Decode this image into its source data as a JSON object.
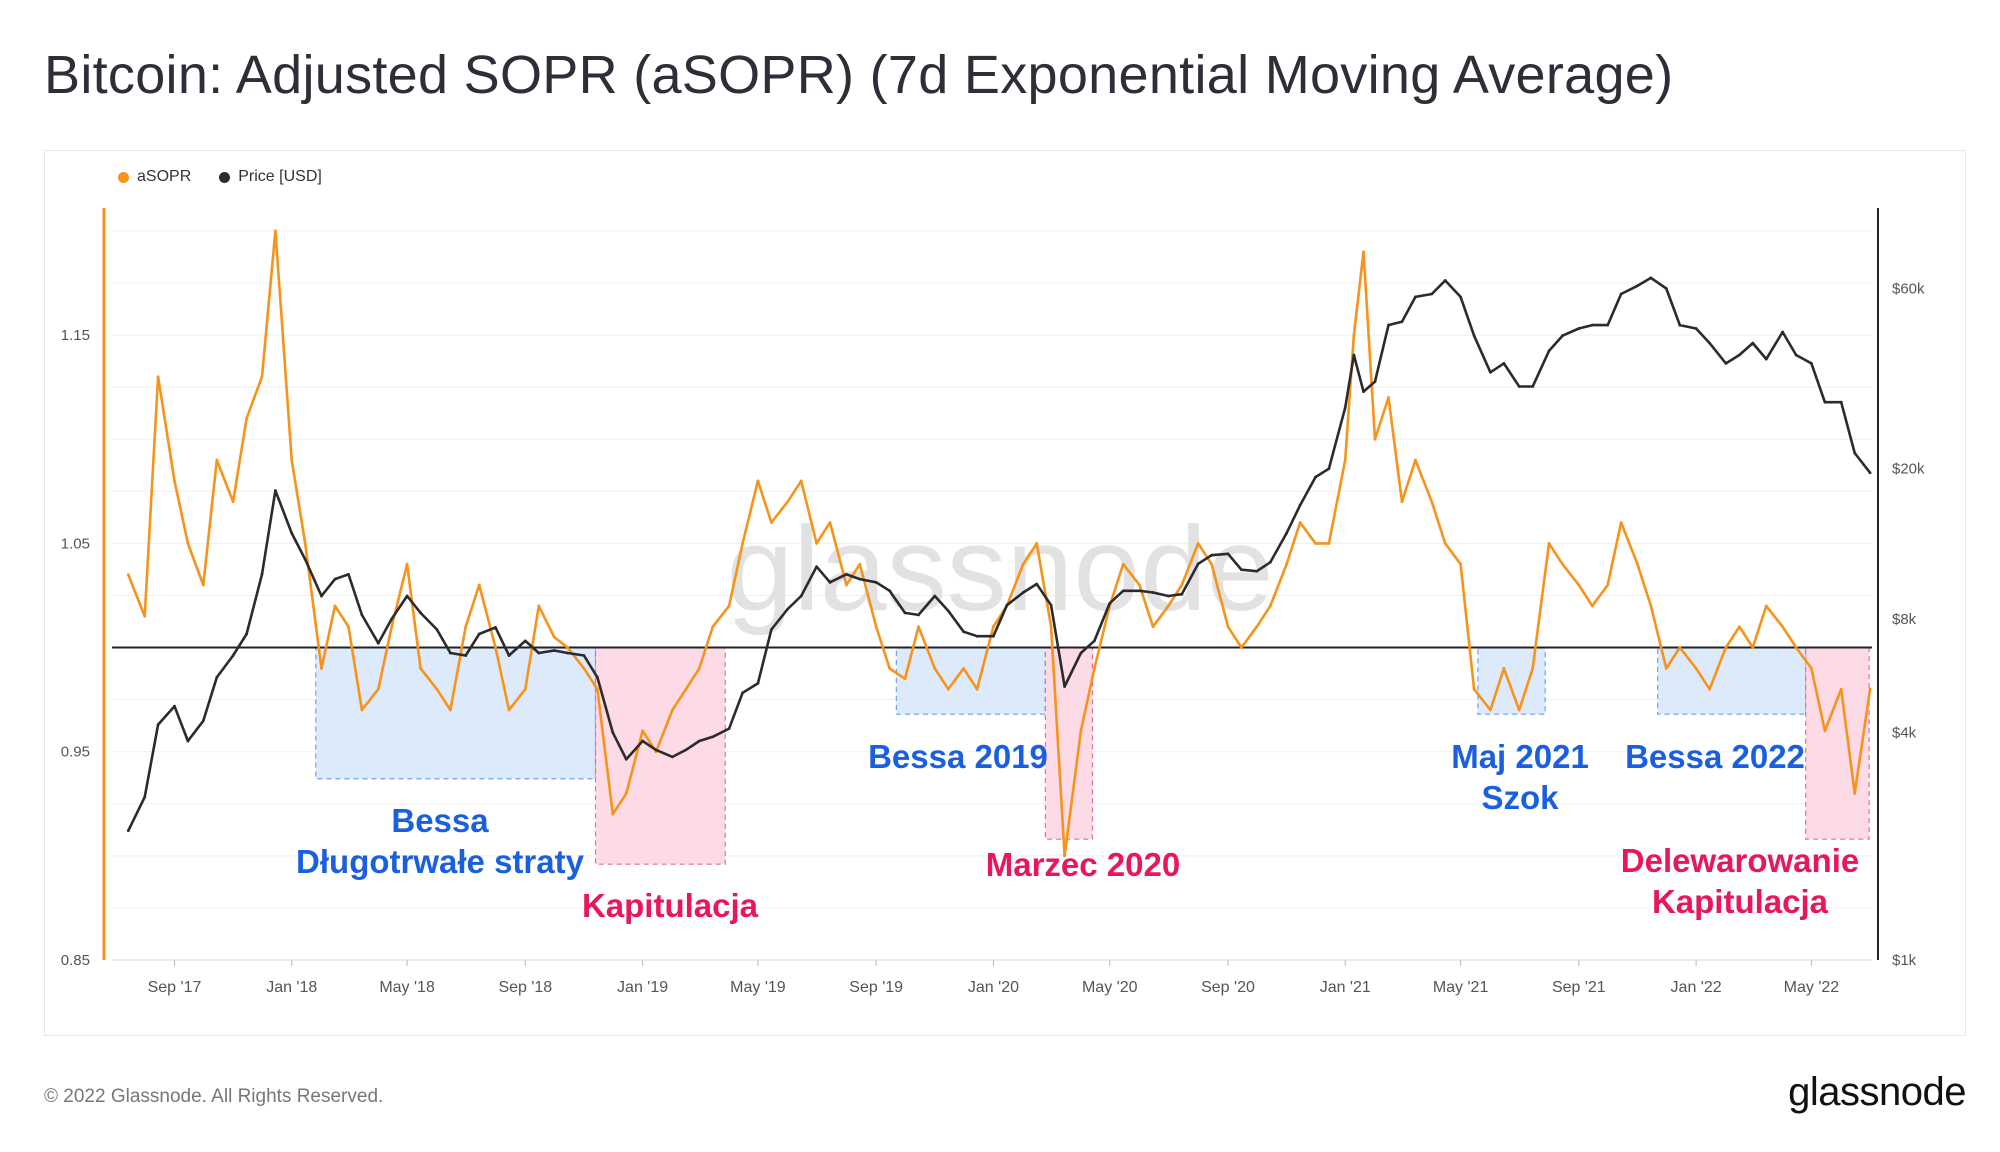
{
  "header": {
    "title": "Bitcoin: Adjusted SOPR (aSOPR) (7d Exponential Moving Average)"
  },
  "legend": {
    "asopr_label": "aSOPR",
    "price_label": "Price [USD]"
  },
  "footer": {
    "copyright": "© 2022 Glassnode. All Rights Reserved.",
    "brand": "glassnode"
  },
  "watermark": "glassnode",
  "colors": {
    "asopr": "#f7931a",
    "price": "#2b2b2b",
    "bear_fill": "#d7e6fb",
    "bear_stroke": "#6fa1e3",
    "capit_fill": "#fbd5e3",
    "capit_stroke": "#e36d9b",
    "bear_text": "#1a5fe0",
    "capit_text": "#e8175d"
  },
  "chart_data": {
    "type": "line",
    "title": "Bitcoin: Adjusted SOPR (aSOPR) (7d Exponential Moving Average)",
    "x_ticks": [
      "Sep '17",
      "Jan '18",
      "May '18",
      "Sep '18",
      "Jan '19",
      "May '19",
      "Sep '19",
      "Jan '20",
      "May '20",
      "Sep '20",
      "Jan '21",
      "May '21",
      "Sep '21",
      "Jan '22",
      "May '22"
    ],
    "y_left": {
      "ticks": [
        "0.85",
        "1.05",
        "1.15",
        "0.95"
      ],
      "tick_values": [
        0.85,
        0.95,
        1.05,
        1.15
      ],
      "range": [
        0.85,
        1.15
      ]
    },
    "y_right": {
      "ticks": [
        "$1k",
        "$4k",
        "$8k",
        "$20k",
        "$60k"
      ],
      "tick_values": [
        1000,
        4000,
        8000,
        20000,
        60000
      ],
      "scale": "log"
    },
    "reference_line": 1.0,
    "series": [
      {
        "name": "aSOPR",
        "x": [
          "2017-07-15",
          "2017-08-01",
          "2017-08-15",
          "2017-09-01",
          "2017-09-15",
          "2017-10-01",
          "2017-10-15",
          "2017-11-01",
          "2017-11-15",
          "2017-12-01",
          "2017-12-15",
          "2018-01-01",
          "2018-01-15",
          "2018-02-01",
          "2018-02-15",
          "2018-03-01",
          "2018-03-15",
          "2018-04-01",
          "2018-04-15",
          "2018-05-01",
          "2018-05-15",
          "2018-06-01",
          "2018-06-15",
          "2018-07-01",
          "2018-07-15",
          "2018-08-01",
          "2018-08-15",
          "2018-09-01",
          "2018-09-15",
          "2018-10-01",
          "2018-10-15",
          "2018-11-01",
          "2018-11-15",
          "2018-12-01",
          "2018-12-15",
          "2019-01-01",
          "2019-01-15",
          "2019-02-01",
          "2019-02-15",
          "2019-03-01",
          "2019-03-15",
          "2019-04-01",
          "2019-04-15",
          "2019-05-01",
          "2019-05-15",
          "2019-06-01",
          "2019-06-15",
          "2019-07-01",
          "2019-07-15",
          "2019-08-01",
          "2019-08-15",
          "2019-09-01",
          "2019-09-15",
          "2019-10-01",
          "2019-10-15",
          "2019-11-01",
          "2019-11-15",
          "2019-12-01",
          "2019-12-15",
          "2020-01-01",
          "2020-01-15",
          "2020-02-01",
          "2020-02-15",
          "2020-03-01",
          "2020-03-15",
          "2020-04-01",
          "2020-04-15",
          "2020-05-01",
          "2020-05-15",
          "2020-06-01",
          "2020-06-15",
          "2020-07-01",
          "2020-07-15",
          "2020-08-01",
          "2020-08-15",
          "2020-09-01",
          "2020-09-15",
          "2020-10-01",
          "2020-10-15",
          "2020-11-01",
          "2020-11-15",
          "2020-12-01",
          "2020-12-15",
          "2021-01-01",
          "2021-01-10",
          "2021-01-20",
          "2021-02-01",
          "2021-02-15",
          "2021-03-01",
          "2021-03-15",
          "2021-04-01",
          "2021-04-15",
          "2021-05-01",
          "2021-05-15",
          "2021-06-01",
          "2021-06-15",
          "2021-07-01",
          "2021-07-15",
          "2021-08-01",
          "2021-08-15",
          "2021-09-01",
          "2021-09-15",
          "2021-10-01",
          "2021-10-15",
          "2021-11-01",
          "2021-11-15",
          "2021-12-01",
          "2021-12-15",
          "2022-01-01",
          "2022-01-15",
          "2022-02-01",
          "2022-02-15",
          "2022-03-01",
          "2022-03-15",
          "2022-04-01",
          "2022-04-15",
          "2022-05-01",
          "2022-05-15",
          "2022-06-01",
          "2022-06-15",
          "2022-07-01"
        ],
        "values": [
          1.035,
          1.015,
          1.13,
          1.08,
          1.05,
          1.03,
          1.09,
          1.07,
          1.11,
          1.13,
          1.2,
          1.09,
          1.05,
          0.99,
          1.02,
          1.01,
          0.97,
          0.98,
          1.01,
          1.04,
          0.99,
          0.98,
          0.97,
          1.01,
          1.03,
          1.0,
          0.97,
          0.98,
          1.02,
          1.005,
          1.0,
          0.99,
          0.98,
          0.92,
          0.93,
          0.96,
          0.95,
          0.97,
          0.98,
          0.99,
          1.01,
          1.02,
          1.05,
          1.08,
          1.06,
          1.07,
          1.08,
          1.05,
          1.06,
          1.03,
          1.04,
          1.01,
          0.99,
          0.985,
          1.01,
          0.99,
          0.98,
          0.99,
          0.98,
          1.01,
          1.02,
          1.04,
          1.05,
          1.01,
          0.9,
          0.96,
          0.99,
          1.02,
          1.04,
          1.03,
          1.01,
          1.02,
          1.03,
          1.05,
          1.04,
          1.01,
          1.0,
          1.01,
          1.02,
          1.04,
          1.06,
          1.05,
          1.05,
          1.09,
          1.15,
          1.19,
          1.1,
          1.12,
          1.07,
          1.09,
          1.07,
          1.05,
          1.04,
          0.98,
          0.97,
          0.99,
          0.97,
          0.99,
          1.05,
          1.04,
          1.03,
          1.02,
          1.03,
          1.06,
          1.04,
          1.02,
          0.99,
          1.0,
          0.99,
          0.98,
          1.0,
          1.01,
          1.0,
          1.02,
          1.01,
          1.0,
          0.99,
          0.96,
          0.98,
          0.93,
          0.98
        ]
      },
      {
        "name": "Price [USD]",
        "x": [
          "2017-07-15",
          "2017-08-01",
          "2017-08-15",
          "2017-09-01",
          "2017-09-15",
          "2017-10-01",
          "2017-10-15",
          "2017-11-01",
          "2017-11-15",
          "2017-12-01",
          "2017-12-15",
          "2018-01-01",
          "2018-01-15",
          "2018-02-01",
          "2018-02-15",
          "2018-03-01",
          "2018-03-15",
          "2018-04-01",
          "2018-04-15",
          "2018-05-01",
          "2018-05-15",
          "2018-06-01",
          "2018-06-15",
          "2018-07-01",
          "2018-07-15",
          "2018-08-01",
          "2018-08-15",
          "2018-09-01",
          "2018-09-15",
          "2018-10-01",
          "2018-10-15",
          "2018-11-01",
          "2018-11-15",
          "2018-12-01",
          "2018-12-15",
          "2019-01-01",
          "2019-01-15",
          "2019-02-01",
          "2019-02-15",
          "2019-03-01",
          "2019-03-15",
          "2019-04-01",
          "2019-04-15",
          "2019-05-01",
          "2019-05-15",
          "2019-06-01",
          "2019-06-15",
          "2019-07-01",
          "2019-07-15",
          "2019-08-01",
          "2019-08-15",
          "2019-09-01",
          "2019-09-15",
          "2019-10-01",
          "2019-10-15",
          "2019-11-01",
          "2019-11-15",
          "2019-12-01",
          "2019-12-15",
          "2020-01-01",
          "2020-01-15",
          "2020-02-01",
          "2020-02-15",
          "2020-03-01",
          "2020-03-15",
          "2020-04-01",
          "2020-04-15",
          "2020-05-01",
          "2020-05-15",
          "2020-06-01",
          "2020-06-15",
          "2020-07-01",
          "2020-07-15",
          "2020-08-01",
          "2020-08-15",
          "2020-09-01",
          "2020-09-15",
          "2020-10-01",
          "2020-10-15",
          "2020-11-01",
          "2020-11-15",
          "2020-12-01",
          "2020-12-15",
          "2021-01-01",
          "2021-01-10",
          "2021-01-20",
          "2021-02-01",
          "2021-02-15",
          "2021-03-01",
          "2021-03-15",
          "2021-04-01",
          "2021-04-15",
          "2021-05-01",
          "2021-05-15",
          "2021-06-01",
          "2021-06-15",
          "2021-07-01",
          "2021-07-15",
          "2021-08-01",
          "2021-08-15",
          "2021-09-01",
          "2021-09-15",
          "2021-10-01",
          "2021-10-15",
          "2021-11-01",
          "2021-11-15",
          "2021-12-01",
          "2021-12-15",
          "2022-01-01",
          "2022-01-15",
          "2022-02-01",
          "2022-02-15",
          "2022-03-01",
          "2022-03-15",
          "2022-04-01",
          "2022-04-15",
          "2022-05-01",
          "2022-05-15",
          "2022-06-01",
          "2022-06-15",
          "2022-07-01"
        ],
        "values": [
          2200,
          2700,
          4200,
          4700,
          3800,
          4300,
          5600,
          6400,
          7300,
          10500,
          17500,
          13500,
          11500,
          9200,
          10200,
          10500,
          8200,
          6900,
          8000,
          9200,
          8300,
          7500,
          6500,
          6400,
          7300,
          7600,
          6400,
          7000,
          6500,
          6600,
          6500,
          6400,
          5600,
          4000,
          3400,
          3800,
          3600,
          3450,
          3600,
          3800,
          3900,
          4100,
          5100,
          5400,
          7500,
          8500,
          9200,
          11000,
          10000,
          10500,
          10200,
          10000,
          9500,
          8300,
          8200,
          9200,
          8400,
          7400,
          7200,
          7200,
          8700,
          9400,
          9900,
          8700,
          5300,
          6500,
          7000,
          8800,
          9500,
          9500,
          9400,
          9200,
          9300,
          11200,
          11800,
          11900,
          10800,
          10700,
          11300,
          13500,
          16000,
          19000,
          20000,
          29000,
          40000,
          32000,
          34000,
          48000,
          49000,
          57000,
          58000,
          63000,
          57000,
          45000,
          36000,
          38000,
          33000,
          33000,
          41000,
          45000,
          47000,
          48000,
          48000,
          58000,
          61000,
          64000,
          60000,
          48000,
          47000,
          43000,
          38000,
          40000,
          43000,
          39000,
          46000,
          40000,
          38000,
          30000,
          30000,
          22000,
          19500
        ]
      }
    ],
    "annotations": [
      {
        "label_lines": [
          "Bessa",
          "Długotrwałe straty"
        ],
        "kind": "bear",
        "from": "2018-01-26",
        "to": "2018-11-13",
        "y_top": 1.0,
        "y_bottom": 0.937
      },
      {
        "label_lines": [
          "Kapitulacja"
        ],
        "kind": "capitulation",
        "from": "2018-11-13",
        "to": "2019-03-28",
        "y_top": 1.0,
        "y_bottom": 0.896
      },
      {
        "label_lines": [
          "Bessa 2019"
        ],
        "kind": "bear",
        "from": "2019-09-22",
        "to": "2020-02-24",
        "y_top": 1.0,
        "y_bottom": 0.968
      },
      {
        "label_lines": [
          "Marzec 2020"
        ],
        "kind": "capitulation",
        "from": "2020-02-24",
        "to": "2020-04-13",
        "y_top": 1.0,
        "y_bottom": 0.908
      },
      {
        "label_lines": [
          "Maj 2021",
          "Szok"
        ],
        "kind": "bear",
        "from": "2021-05-19",
        "to": "2021-07-28",
        "y_top": 1.0,
        "y_bottom": 0.968
      },
      {
        "label_lines": [
          "Bessa 2022"
        ],
        "kind": "bear",
        "from": "2021-11-22",
        "to": "2022-04-25",
        "y_top": 1.0,
        "y_bottom": 0.968
      },
      {
        "label_lines": [
          "Delewarowanie",
          "Kapitulacja"
        ],
        "kind": "capitulation",
        "from": "2022-04-25",
        "to": "2022-06-30",
        "y_top": 1.0,
        "y_bottom": 0.908
      }
    ]
  }
}
